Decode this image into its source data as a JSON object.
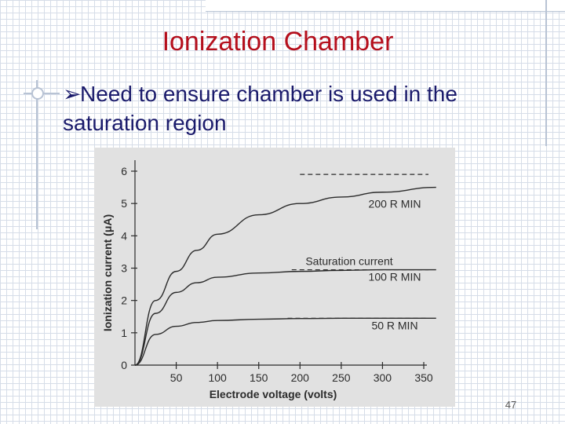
{
  "slide": {
    "title": "Ionization Chamber",
    "bullet": "Need to ensure chamber is used in the saturation region",
    "page_number": "47",
    "title_color": "#b50f1c",
    "bullet_color": "#1a1a6b"
  },
  "chart_data": {
    "type": "line",
    "xlabel": "Electrode voltage (volts)",
    "ylabel": "Ionization current (μA)",
    "xlim": [
      0,
      350
    ],
    "ylim": [
      0,
      6
    ],
    "x_ticks": [
      50,
      100,
      150,
      200,
      250,
      300,
      350
    ],
    "y_ticks": [
      0,
      1,
      2,
      3,
      4,
      5,
      6
    ],
    "grid": false,
    "annotation": "Saturation current",
    "series": [
      {
        "name": "200 R MIN",
        "x": [
          0,
          25,
          50,
          75,
          100,
          150,
          200,
          250,
          300,
          365
        ],
        "values": [
          0,
          2.0,
          2.9,
          3.55,
          4.05,
          4.65,
          5.0,
          5.2,
          5.35,
          5.5
        ],
        "saturation": 5.9
      },
      {
        "name": "100 R MIN",
        "x": [
          0,
          25,
          50,
          75,
          100,
          150,
          200,
          250,
          300,
          365
        ],
        "values": [
          0,
          1.6,
          2.25,
          2.55,
          2.72,
          2.85,
          2.9,
          2.93,
          2.95,
          2.95
        ],
        "saturation": 2.95
      },
      {
        "name": "50 R MIN",
        "x": [
          0,
          25,
          50,
          75,
          100,
          150,
          200,
          250,
          300,
          365
        ],
        "values": [
          0,
          0.95,
          1.2,
          1.32,
          1.38,
          1.42,
          1.44,
          1.45,
          1.45,
          1.45
        ],
        "saturation": 1.45
      }
    ]
  }
}
